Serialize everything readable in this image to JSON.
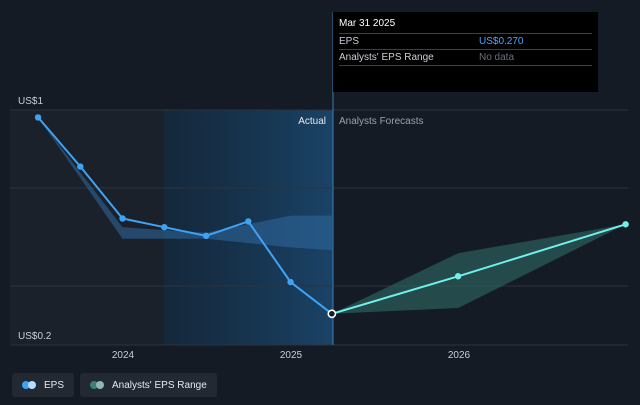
{
  "chart_data": {
    "type": "line",
    "y_top_label": "US$1",
    "y_bottom_label": "US$0.2",
    "ylim": [
      0.2,
      1.0
    ],
    "x_ticks": [
      "2024",
      "2025",
      "2026"
    ],
    "region_labels": {
      "actual": "Actual",
      "forecast": "Analysts Forecasts"
    },
    "series": [
      {
        "name": "EPS",
        "color": "#3fa3f5",
        "points": [
          {
            "x": "2023-06-30",
            "y": 0.95
          },
          {
            "x": "2023-09-30",
            "y": 0.78
          },
          {
            "x": "2023-12-31",
            "y": 0.6
          },
          {
            "x": "2024-03-31",
            "y": 0.57
          },
          {
            "x": "2024-06-30",
            "y": 0.54
          },
          {
            "x": "2024-09-30",
            "y": 0.59
          },
          {
            "x": "2024-12-31",
            "y": 0.38
          },
          {
            "x": "2025-03-31",
            "y": 0.27
          }
        ]
      },
      {
        "name": "EPS Forecast",
        "color": "#6ff0ea",
        "points": [
          {
            "x": "2025-03-31",
            "y": 0.27
          },
          {
            "x": "2025-12-31",
            "y": 0.4
          },
          {
            "x": "2026-12-31",
            "y": 0.58
          }
        ]
      }
    ],
    "analyst_range": {
      "name": "Analysts' EPS Range",
      "upper": [
        {
          "x": "2025-03-31",
          "y": 0.27
        },
        {
          "x": "2025-12-31",
          "y": 0.48
        },
        {
          "x": "2026-12-31",
          "y": 0.58
        }
      ],
      "lower": [
        {
          "x": "2025-03-31",
          "y": 0.27
        },
        {
          "x": "2025-12-31",
          "y": 0.29
        },
        {
          "x": "2026-12-31",
          "y": 0.58
        }
      ]
    },
    "past_range": {
      "upper": [
        {
          "x": "2023-06-30",
          "y": 0.95
        },
        {
          "x": "2023-12-31",
          "y": 0.57
        },
        {
          "x": "2024-06-30",
          "y": 0.55
        },
        {
          "x": "2024-12-31",
          "y": 0.61
        },
        {
          "x": "2025-03-31",
          "y": 0.61
        }
      ],
      "lower": [
        {
          "x": "2023-06-30",
          "y": 0.95
        },
        {
          "x": "2023-12-31",
          "y": 0.53
        },
        {
          "x": "2024-06-30",
          "y": 0.53
        },
        {
          "x": "2024-12-31",
          "y": 0.5
        },
        {
          "x": "2025-03-31",
          "y": 0.49
        }
      ]
    },
    "highlight": {
      "x": "2025-03-31",
      "y": 0.27
    }
  },
  "tooltip": {
    "title": "Mar 31 2025",
    "rows": [
      {
        "key": "EPS",
        "value": "US$0.270"
      },
      {
        "key": "Analysts' EPS Range",
        "value": "No data"
      }
    ]
  },
  "legend": [
    {
      "label": "EPS",
      "color": "#3fa3f5"
    },
    {
      "label": "Analysts' EPS Range",
      "color": "#3d7f7a"
    }
  ]
}
